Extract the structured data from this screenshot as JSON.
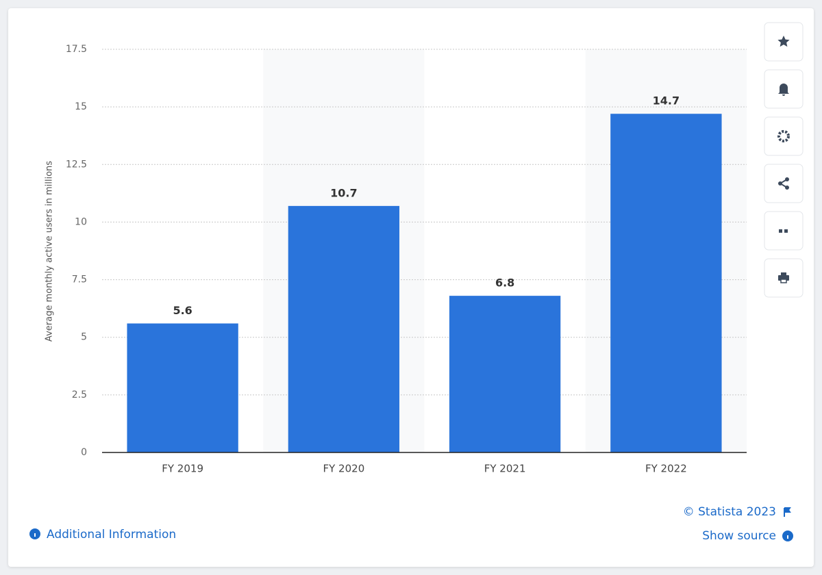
{
  "chart_data": {
    "type": "bar",
    "y_label": "Average monthly active users in millions",
    "categories": [
      "FY 2019",
      "FY 2020",
      "FY 2021",
      "FY 2022"
    ],
    "values": [
      5.6,
      10.7,
      6.8,
      14.7
    ],
    "color": "#2a74db",
    "ylim": [
      0,
      17.5
    ],
    "yticks": [
      0,
      2.5,
      5,
      7.5,
      10,
      12.5,
      15,
      17.5
    ],
    "grid": true
  },
  "footer": {
    "copyright": "© Statista 2023",
    "show_source": "Show source",
    "additional_info": "Additional Information"
  }
}
